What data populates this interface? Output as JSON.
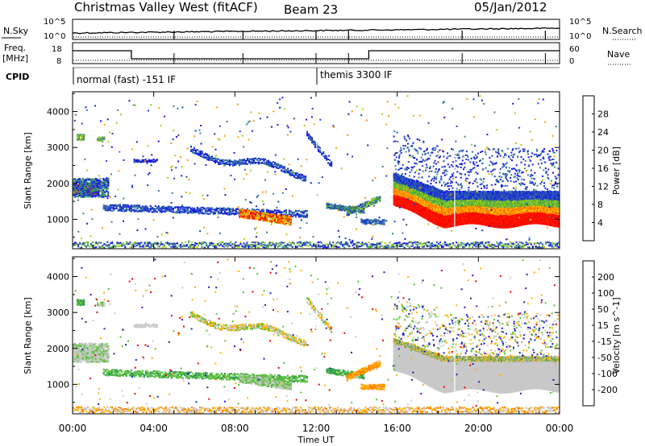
{
  "header": {
    "title": "Christmas Valley West (fitACF)",
    "beam": "Beam 23",
    "date": "05/Jan/2012"
  },
  "panels": {
    "nsky": {
      "left_label": "N.Sky",
      "left_ticks": [
        "10^5",
        "10^0"
      ],
      "right_ticks": [
        "10^5",
        "10^0"
      ],
      "right_label": "N.Search"
    },
    "freq": {
      "left_label": "Freq.",
      "left_unit": "[MHz]",
      "left_ticks": [
        "18",
        "8"
      ],
      "right_ticks": [
        "60",
        "0"
      ],
      "right_label": "Nave"
    },
    "cpid": {
      "label": "CPID",
      "segments": [
        {
          "text": "normal (fast) -151 IF",
          "start_hour": 0,
          "end_hour": 12
        },
        {
          "text": "themis 3300 IF",
          "start_hour": 12,
          "end_hour": 24
        }
      ]
    }
  },
  "chart_data": [
    {
      "type": "heatmap",
      "name": "power",
      "ylabel": "Slant Range [km]",
      "yticks": [
        1000,
        2000,
        3000,
        4000
      ],
      "ylim": [
        180,
        4550
      ],
      "xlim": [
        0,
        24
      ],
      "colorbar": {
        "label": "Power [dB]",
        "ticks": [
          "4",
          "8",
          "12",
          "16",
          "20",
          "24",
          "28"
        ],
        "colors": [
          "#1414e6",
          "#1f3fc8",
          "#3c7f96",
          "#3fa04f",
          "#a0d219",
          "#ffd700",
          "#ff9a00",
          "#ff5500",
          "#ff1a00",
          "#ee0000"
        ]
      }
    },
    {
      "type": "heatmap",
      "name": "velocity",
      "ylabel": "Slant Range [km]",
      "yticks": [
        1000,
        2000,
        3000,
        4000
      ],
      "ylim": [
        180,
        4550
      ],
      "xlim": [
        0,
        24
      ],
      "colorbar": {
        "label": "Velocity [m s^-1]",
        "ticks": [
          "200",
          "100",
          "50",
          "15",
          "-15",
          "-50",
          "-100",
          "-200"
        ],
        "colors": [
          "#1c1cc8",
          "#2a5cbe",
          "#2f9b52",
          "#5bc13a",
          "#c8c8c8",
          "#c8c8c8",
          "#ffb000",
          "#ff8000",
          "#ff3c00",
          "#ee0000"
        ]
      }
    }
  ],
  "xaxis": {
    "label": "Time UT",
    "ticks": [
      "00:00",
      "04:00",
      "08:00",
      "12:00",
      "16:00",
      "20:00",
      "00:00"
    ]
  }
}
